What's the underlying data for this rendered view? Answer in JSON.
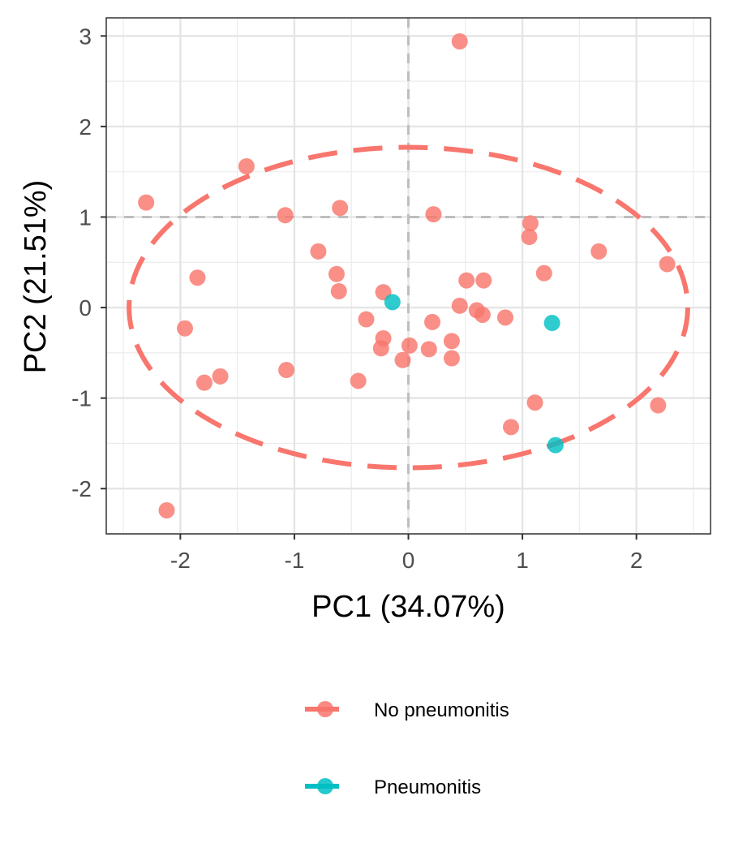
{
  "chart_data": {
    "type": "scatter",
    "title": "",
    "xlabel": "PC1 (34.07%)",
    "ylabel": "PC2 (21.51%)",
    "xlim": [
      -2.65,
      2.65
    ],
    "ylim": [
      -2.5,
      3.2
    ],
    "x_ticks": [
      -2,
      -1,
      0,
      1,
      2
    ],
    "x_tick_labels": [
      "-2",
      "-1",
      "0",
      "1",
      "2"
    ],
    "y_ticks": [
      -2,
      -1,
      0,
      1,
      2,
      3
    ],
    "y_tick_labels": [
      "-2",
      "-1",
      "0",
      "1",
      "2",
      "3"
    ],
    "grid": true,
    "reference_lines": {
      "vertical_x": 0,
      "horizontal_y": 1
    },
    "legend_position": "bottom",
    "series": [
      {
        "name": "No pneumonitis",
        "color": "#F8766D",
        "points": [
          {
            "x": 0.45,
            "y": 2.94
          },
          {
            "x": -1.42,
            "y": 1.56
          },
          {
            "x": -2.3,
            "y": 1.16
          },
          {
            "x": -1.08,
            "y": 1.02
          },
          {
            "x": -0.6,
            "y": 1.1
          },
          {
            "x": 0.22,
            "y": 1.03
          },
          {
            "x": 1.07,
            "y": 0.93
          },
          {
            "x": 1.06,
            "y": 0.78
          },
          {
            "x": 1.67,
            "y": 0.62
          },
          {
            "x": 2.27,
            "y": 0.48
          },
          {
            "x": -0.79,
            "y": 0.62
          },
          {
            "x": -0.63,
            "y": 0.37
          },
          {
            "x": -0.61,
            "y": 0.18
          },
          {
            "x": -1.85,
            "y": 0.33
          },
          {
            "x": -0.22,
            "y": 0.17
          },
          {
            "x": 0.51,
            "y": 0.3
          },
          {
            "x": 0.66,
            "y": 0.3
          },
          {
            "x": 1.19,
            "y": 0.38
          },
          {
            "x": 0.45,
            "y": 0.02
          },
          {
            "x": 0.6,
            "y": -0.03
          },
          {
            "x": 0.65,
            "y": -0.08
          },
          {
            "x": 0.85,
            "y": -0.11
          },
          {
            "x": -0.37,
            "y": -0.13
          },
          {
            "x": 0.21,
            "y": -0.16
          },
          {
            "x": -1.96,
            "y": -0.23
          },
          {
            "x": -0.22,
            "y": -0.34
          },
          {
            "x": 0.38,
            "y": -0.37
          },
          {
            "x": 0.01,
            "y": -0.42
          },
          {
            "x": -0.24,
            "y": -0.45
          },
          {
            "x": 0.18,
            "y": -0.46
          },
          {
            "x": 0.38,
            "y": -0.56
          },
          {
            "x": -0.05,
            "y": -0.58
          },
          {
            "x": -1.07,
            "y": -0.69
          },
          {
            "x": -1.65,
            "y": -0.76
          },
          {
            "x": -1.79,
            "y": -0.83
          },
          {
            "x": -0.44,
            "y": -0.81
          },
          {
            "x": 1.11,
            "y": -1.05
          },
          {
            "x": 2.19,
            "y": -1.08
          },
          {
            "x": 0.9,
            "y": -1.32
          },
          {
            "x": -2.12,
            "y": -2.24
          }
        ]
      },
      {
        "name": "Pneumonitis",
        "color": "#00BFC4",
        "points": [
          {
            "x": -0.14,
            "y": 0.06
          },
          {
            "x": 1.26,
            "y": -0.17
          },
          {
            "x": 1.29,
            "y": -1.52
          }
        ]
      }
    ],
    "ellipse": {
      "series": "No pneumonitis",
      "center": [
        0,
        0
      ],
      "radius_x": 2.45,
      "radius_y": 1.77,
      "style": "dashed"
    }
  }
}
